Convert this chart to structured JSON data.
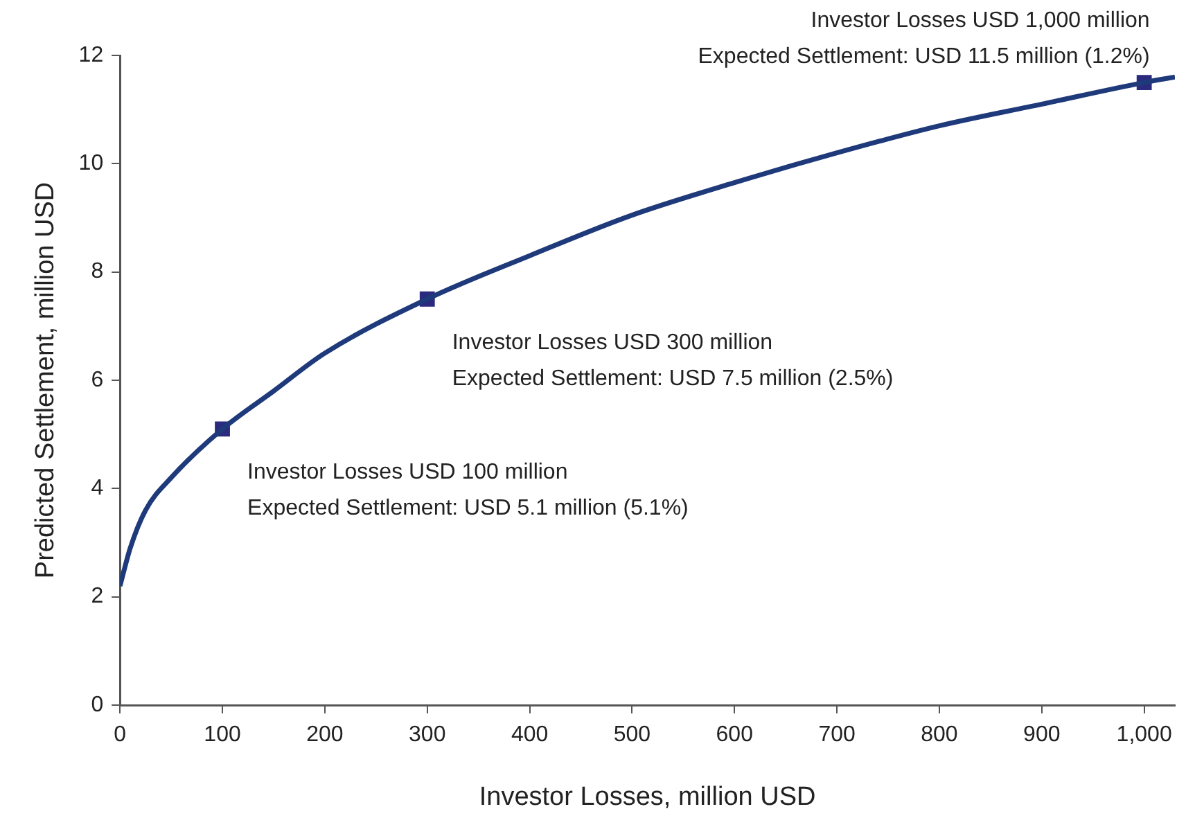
{
  "chart_data": {
    "type": "line",
    "xlabel": "Investor Losses, million USD",
    "ylabel": "Predicted Settlement, million USD",
    "xlim": [
      0,
      1030
    ],
    "xticks": [
      0,
      100,
      200,
      300,
      400,
      500,
      600,
      700,
      800,
      900,
      {
        "value": 1000,
        "label": "1,000"
      }
    ],
    "ylim": [
      0,
      12
    ],
    "yticks": [
      0,
      2,
      4,
      6,
      8,
      10,
      12
    ],
    "grid": false,
    "legend": false,
    "series": [
      {
        "type": "line",
        "color": "#1f3a7a",
        "marker": "none",
        "x": [
          0,
          10,
          25,
          50,
          100,
          150,
          200,
          300,
          400,
          500,
          600,
          700,
          800,
          900,
          1000,
          1030
        ],
        "values": [
          2.2,
          2.9,
          3.6,
          4.2,
          5.1,
          5.8,
          6.5,
          7.5,
          8.3,
          9.05,
          9.65,
          10.2,
          10.7,
          11.1,
          11.5,
          11.6
        ]
      },
      {
        "type": "scatter",
        "color": "#2a2a7e",
        "marker": "square",
        "x": [
          100,
          300,
          1000
        ],
        "values": [
          5.1,
          7.5,
          11.5
        ]
      }
    ],
    "annotations": [
      {
        "text": "Investor Losses USD 100 million\nExpected Settlement: USD 5.1 million (5.1%)",
        "x": 100,
        "y": 5.1
      },
      {
        "text": "Investor Losses USD 300 million\nExpected Settlement: USD 7.5 million (2.5%)",
        "x": 300,
        "y": 7.5
      },
      {
        "text": "Investor Losses USD 1,000 million\nExpected Settlement: USD 11.5 million (1.2%)",
        "x": 1000,
        "y": 11.5
      }
    ]
  }
}
